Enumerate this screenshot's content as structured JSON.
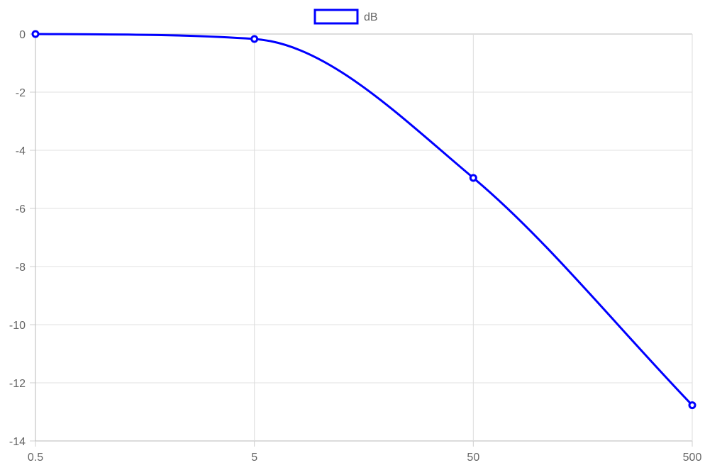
{
  "chart_data": {
    "type": "line",
    "x_scale": "log",
    "x": [
      0.5,
      5,
      50,
      500
    ],
    "series": [
      {
        "name": "dB",
        "color": "#0000ff",
        "values": [
          0,
          -0.17,
          -4.95,
          -12.77
        ]
      }
    ],
    "xticks": [
      "0.5",
      "5",
      "50",
      "500"
    ],
    "yticks": [
      "0",
      "-2",
      "-4",
      "-6",
      "-8",
      "-10",
      "-12",
      "-14"
    ],
    "ytick_values": [
      0,
      -2,
      -4,
      -6,
      -8,
      -10,
      -12,
      -14
    ],
    "xlim": [
      0.5,
      500
    ],
    "ylim": [
      -14,
      0
    ],
    "grid": true,
    "legend_position": "top-center",
    "title": "",
    "xlabel": "",
    "ylabel": ""
  }
}
